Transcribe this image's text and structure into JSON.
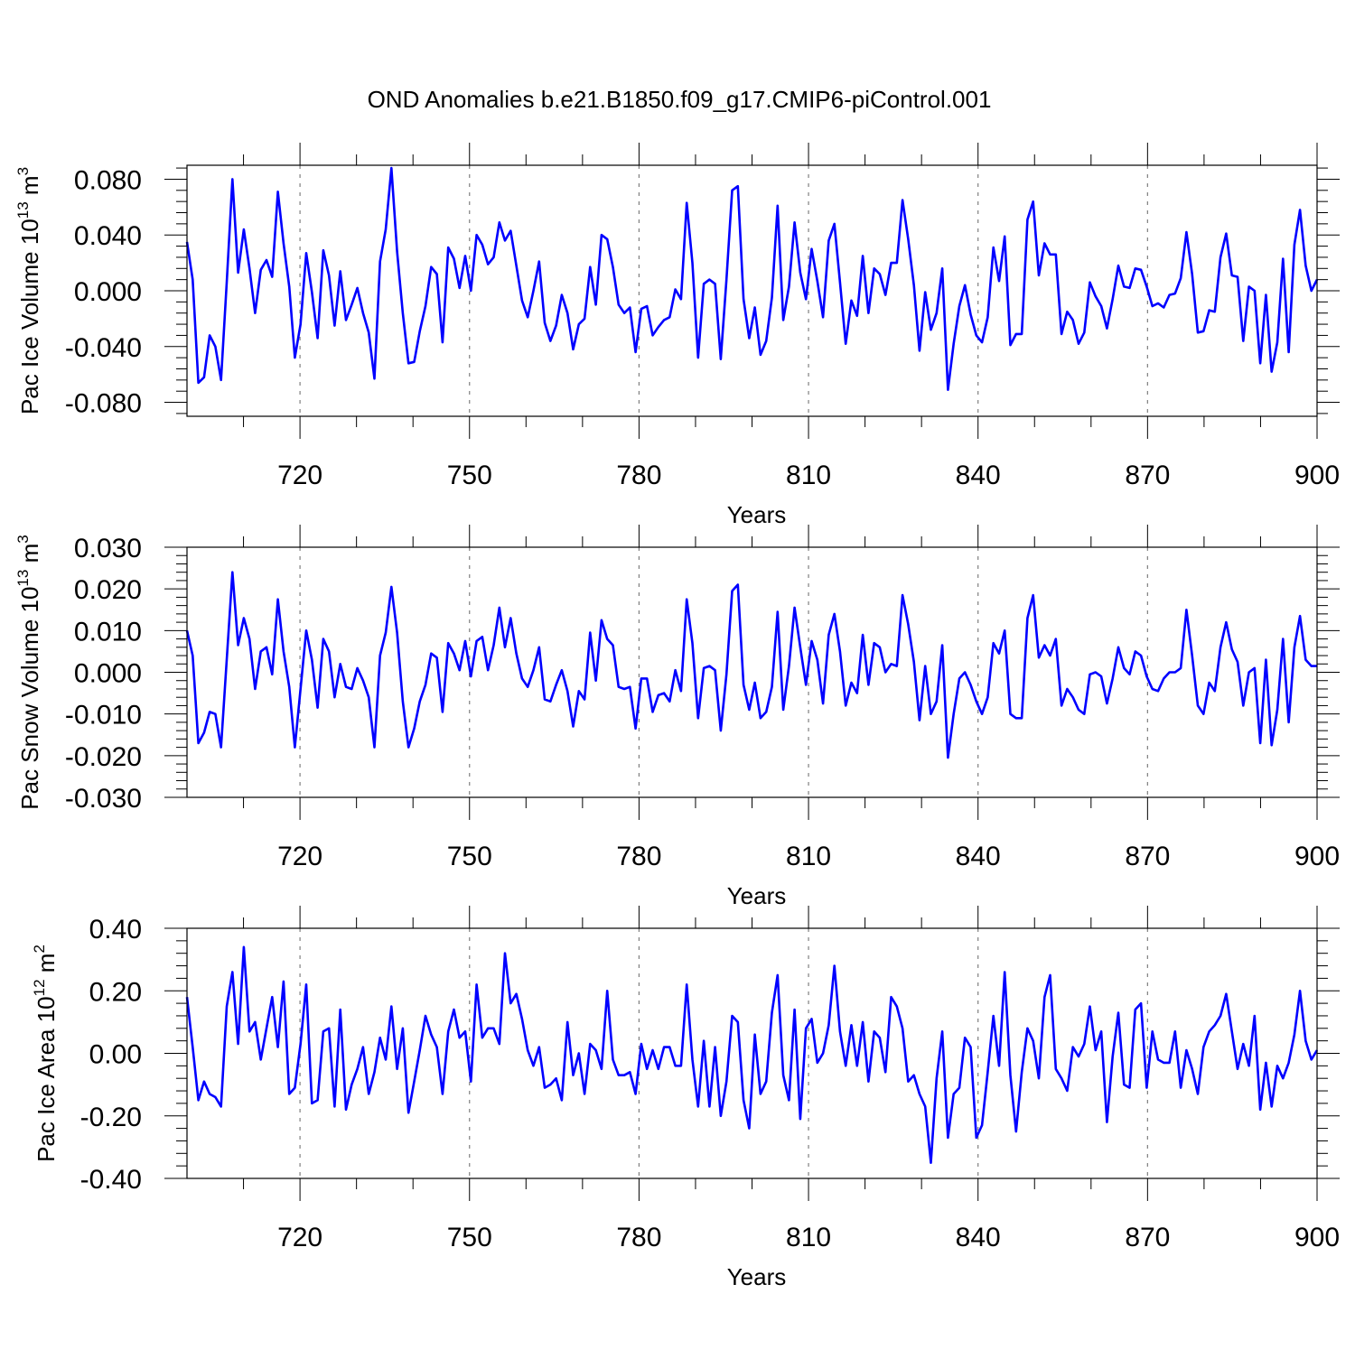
{
  "figure": {
    "title": "OND Anomalies b.e21.B1850.f09_g17.CMIP6-piControl.001",
    "series_color": "#0000ff",
    "grid_color": "#7f7f7f"
  },
  "chart_data": [
    {
      "type": "line",
      "title": "OND Anomalies b.e21.B1850.f09_g17.CMIP6-piControl.001",
      "ylabel_main": "Pac Ice Volume 10",
      "ylabel_sup": "13",
      "ylabel_unit": " m",
      "ylabel_unit_sup": "3",
      "xlabel": "Years",
      "xlim": [
        700,
        900
      ],
      "ylim": [
        -0.09,
        0.09
      ],
      "xticks": [
        720,
        750,
        780,
        810,
        840,
        870,
        900
      ],
      "xtick_labels": [
        "720",
        "750",
        "780",
        "810",
        "840",
        "870",
        "900"
      ],
      "yticks": [
        0.08,
        0.04,
        0.0,
        -0.04,
        -0.08
      ],
      "ytick_labels": [
        "0.080",
        "0.040",
        "0.000",
        "-0.040",
        "-0.080"
      ],
      "x_start": 700,
      "series": [
        {
          "name": "Pac Ice Volume",
          "values": [
            0.035,
            0.008,
            -0.066,
            -0.062,
            -0.032,
            -0.04,
            -0.064,
            0.006,
            0.08,
            0.013,
            0.044,
            0.016,
            -0.016,
            0.015,
            0.022,
            0.01,
            0.071,
            0.034,
            0.003,
            -0.048,
            -0.024,
            0.027,
            -0.001,
            -0.034,
            0.029,
            0.011,
            -0.025,
            0.014,
            -0.021,
            -0.01,
            0.002,
            -0.016,
            -0.03,
            -0.063,
            0.021,
            0.044,
            0.088,
            0.028,
            -0.016,
            -0.052,
            -0.051,
            -0.029,
            -0.011,
            0.017,
            0.012,
            -0.037,
            0.031,
            0.023,
            0.002,
            0.025,
            0.0,
            0.04,
            0.033,
            0.019,
            0.024,
            0.049,
            0.036,
            0.043,
            0.018,
            -0.007,
            -0.019,
            0.0,
            0.021,
            -0.023,
            -0.036,
            -0.025,
            -0.003,
            -0.016,
            -0.042,
            -0.024,
            -0.02,
            0.017,
            -0.01,
            0.04,
            0.037,
            0.017,
            -0.01,
            -0.016,
            -0.012,
            -0.044,
            -0.013,
            -0.011,
            -0.032,
            -0.026,
            -0.021,
            -0.019,
            0.001,
            -0.006,
            0.063,
            0.02,
            -0.048,
            0.005,
            0.008,
            0.005,
            -0.049,
            0.008,
            0.072,
            0.075,
            -0.006,
            -0.034,
            -0.012,
            -0.046,
            -0.036,
            -0.005,
            0.061,
            -0.021,
            0.003,
            0.049,
            0.013,
            -0.006,
            0.03,
            0.007,
            -0.019,
            0.036,
            0.048,
            0.006,
            -0.038,
            -0.007,
            -0.018,
            0.025,
            -0.016,
            0.016,
            0.012,
            -0.003,
            0.02,
            0.02,
            0.065,
            0.037,
            0.004,
            -0.043,
            -0.001,
            -0.028,
            -0.016,
            0.016,
            -0.071,
            -0.038,
            -0.011,
            0.004,
            -0.017,
            -0.032,
            -0.037,
            -0.019,
            0.031,
            0.007,
            0.039,
            -0.039,
            -0.031,
            -0.031,
            0.051,
            0.064,
            0.011,
            0.034,
            0.026,
            0.026,
            -0.031,
            -0.015,
            -0.021,
            -0.038,
            -0.03,
            0.006,
            -0.004,
            -0.011,
            -0.027,
            -0.006,
            0.018,
            0.003,
            0.002,
            0.016,
            0.015,
            0.003,
            -0.011,
            -0.009,
            -0.012,
            -0.003,
            -0.002,
            0.009,
            0.042,
            0.012,
            -0.03,
            -0.029,
            -0.014,
            -0.015,
            0.024,
            0.041,
            0.011,
            0.01,
            -0.036,
            0.003,
            0.0,
            -0.052,
            -0.003,
            -0.058,
            -0.037,
            0.023,
            -0.044,
            0.033,
            0.058,
            0.018,
            0.0,
            0.008
          ]
        }
      ]
    },
    {
      "type": "line",
      "ylabel_main": "Pac Snow Volume 10",
      "ylabel_sup": "13",
      "ylabel_unit": " m",
      "ylabel_unit_sup": "3",
      "xlabel": "Years",
      "xlim": [
        700,
        900
      ],
      "ylim": [
        -0.03,
        0.03
      ],
      "xticks": [
        720,
        750,
        780,
        810,
        840,
        870,
        900
      ],
      "xtick_labels": [
        "720",
        "750",
        "780",
        "810",
        "840",
        "870",
        "900"
      ],
      "yticks": [
        0.03,
        0.02,
        0.01,
        0.0,
        -0.01,
        -0.02,
        -0.03
      ],
      "ytick_labels": [
        "0.030",
        "0.020",
        "0.010",
        "0.000",
        "-0.010",
        "-0.020",
        "-0.030"
      ],
      "x_start": 700,
      "series": [
        {
          "name": "Pac Snow Volume",
          "values": [
            0.01,
            0.004,
            -0.017,
            -0.0145,
            -0.0095,
            -0.01,
            -0.018,
            0.003,
            0.024,
            0.0065,
            0.013,
            0.008,
            -0.004,
            0.005,
            0.006,
            -0.0005,
            0.0175,
            0.005,
            -0.0035,
            -0.018,
            -0.004,
            0.01,
            0.003,
            -0.0085,
            0.008,
            0.005,
            -0.006,
            0.002,
            -0.0035,
            -0.004,
            0.001,
            -0.002,
            -0.006,
            -0.018,
            0.004,
            0.0095,
            0.0205,
            0.0095,
            -0.007,
            -0.018,
            -0.0135,
            -0.007,
            -0.003,
            0.0045,
            0.0035,
            -0.0095,
            0.007,
            0.0045,
            0.0005,
            0.0075,
            -0.001,
            0.0075,
            0.0085,
            0.0005,
            0.0065,
            0.0155,
            0.006,
            0.013,
            0.0045,
            -0.0015,
            -0.0035,
            0.0005,
            0.006,
            -0.0065,
            -0.007,
            -0.003,
            0.0005,
            -0.0045,
            -0.013,
            -0.0045,
            -0.0065,
            0.0095,
            -0.002,
            0.0125,
            0.008,
            0.0065,
            -0.0035,
            -0.004,
            -0.0035,
            -0.0135,
            -0.0015,
            -0.0015,
            -0.0095,
            -0.0055,
            -0.005,
            -0.007,
            0.0005,
            -0.0045,
            0.0175,
            0.007,
            -0.011,
            0.001,
            0.0015,
            0.0005,
            -0.014,
            -0.0005,
            0.0195,
            0.021,
            -0.003,
            -0.009,
            -0.0025,
            -0.011,
            -0.0095,
            -0.0035,
            0.0145,
            -0.009,
            0.0015,
            0.0155,
            0.006,
            -0.003,
            0.0075,
            0.003,
            -0.0075,
            0.009,
            0.014,
            0.005,
            -0.008,
            -0.0025,
            -0.005,
            0.009,
            -0.003,
            0.007,
            0.006,
            0.0,
            0.002,
            0.0015,
            0.0185,
            0.0115,
            0.0025,
            -0.0115,
            0.0015,
            -0.01,
            -0.007,
            0.0065,
            -0.0205,
            -0.01,
            -0.0015,
            0.0,
            -0.003,
            -0.007,
            -0.01,
            -0.006,
            0.007,
            0.0045,
            0.01,
            -0.01,
            -0.011,
            -0.011,
            0.013,
            0.0185,
            0.0035,
            0.0065,
            0.004,
            0.008,
            -0.008,
            -0.004,
            -0.006,
            -0.009,
            -0.01,
            -0.0005,
            0.0,
            -0.001,
            -0.0075,
            -0.0015,
            0.006,
            0.001,
            -0.0005,
            0.005,
            0.004,
            -0.001,
            -0.004,
            -0.0045,
            -0.0015,
            0.0,
            0.0,
            0.001,
            0.015,
            0.004,
            -0.008,
            -0.01,
            -0.0025,
            -0.0045,
            0.006,
            0.012,
            0.0055,
            0.0025,
            -0.008,
            0.0,
            0.001,
            -0.017,
            0.003,
            -0.0175,
            -0.009,
            0.008,
            -0.012,
            0.006,
            0.0135,
            0.003,
            0.0015,
            0.0015
          ]
        }
      ]
    },
    {
      "type": "line",
      "ylabel_main": "Pac Ice Area 10",
      "ylabel_sup": "12",
      "ylabel_unit": " m",
      "ylabel_unit_sup": "2",
      "xlabel": "Years",
      "xlim": [
        700,
        900
      ],
      "ylim": [
        -0.4,
        0.4
      ],
      "xticks": [
        720,
        750,
        780,
        810,
        840,
        870,
        900
      ],
      "xtick_labels": [
        "720",
        "750",
        "780",
        "810",
        "840",
        "870",
        "900"
      ],
      "yticks": [
        0.4,
        0.2,
        0.0,
        -0.2,
        -0.4
      ],
      "ytick_labels": [
        "0.40",
        "0.20",
        "0.00",
        "-0.20",
        "-0.40"
      ],
      "x_start": 700,
      "series": [
        {
          "name": "Pac Ice Area",
          "values": [
            0.18,
            0.02,
            -0.15,
            -0.09,
            -0.13,
            -0.14,
            -0.17,
            0.15,
            0.26,
            0.03,
            0.34,
            0.07,
            0.1,
            -0.02,
            0.08,
            0.18,
            0.02,
            0.23,
            -0.13,
            -0.11,
            0.03,
            0.22,
            -0.16,
            -0.15,
            0.07,
            0.08,
            -0.17,
            0.14,
            -0.18,
            -0.1,
            -0.05,
            0.02,
            -0.13,
            -0.06,
            0.05,
            -0.02,
            0.15,
            -0.05,
            0.08,
            -0.19,
            -0.09,
            0.01,
            0.12,
            0.06,
            0.02,
            -0.13,
            0.07,
            0.14,
            0.05,
            0.07,
            -0.09,
            0.22,
            0.05,
            0.08,
            0.08,
            0.03,
            0.32,
            0.16,
            0.19,
            0.11,
            0.01,
            -0.04,
            0.02,
            -0.11,
            -0.1,
            -0.08,
            -0.15,
            0.1,
            -0.07,
            0.0,
            -0.13,
            0.03,
            0.01,
            -0.05,
            0.2,
            -0.02,
            -0.07,
            -0.07,
            -0.06,
            -0.13,
            0.03,
            -0.05,
            0.01,
            -0.05,
            0.02,
            0.02,
            -0.04,
            -0.04,
            0.22,
            -0.02,
            -0.17,
            0.04,
            -0.17,
            0.02,
            -0.2,
            -0.09,
            0.12,
            0.1,
            -0.15,
            -0.24,
            0.06,
            -0.13,
            -0.09,
            0.13,
            0.25,
            -0.07,
            -0.15,
            0.14,
            -0.21,
            0.08,
            0.11,
            -0.03,
            0.0,
            0.09,
            0.28,
            0.07,
            -0.04,
            0.09,
            -0.04,
            0.1,
            -0.09,
            0.07,
            0.05,
            -0.06,
            0.18,
            0.15,
            0.08,
            -0.09,
            -0.07,
            -0.13,
            -0.17,
            -0.35,
            -0.08,
            0.07,
            -0.27,
            -0.13,
            -0.11,
            0.05,
            0.02,
            -0.27,
            -0.23,
            -0.06,
            0.12,
            -0.04,
            0.26,
            -0.07,
            -0.25,
            -0.06,
            0.08,
            0.04,
            -0.08,
            0.18,
            0.25,
            -0.05,
            -0.08,
            -0.12,
            0.02,
            -0.01,
            0.03,
            0.15,
            0.01,
            0.07,
            -0.22,
            -0.01,
            0.13,
            -0.1,
            -0.11,
            0.14,
            0.16,
            -0.11,
            0.07,
            -0.02,
            -0.03,
            -0.03,
            0.07,
            -0.11,
            0.01,
            -0.05,
            -0.13,
            0.02,
            0.07,
            0.09,
            0.12,
            0.19,
            0.07,
            -0.05,
            0.03,
            -0.04,
            0.12,
            -0.18,
            -0.03,
            -0.17,
            -0.04,
            -0.08,
            -0.03,
            0.06,
            0.2,
            0.04,
            -0.02,
            0.01
          ]
        }
      ]
    }
  ]
}
